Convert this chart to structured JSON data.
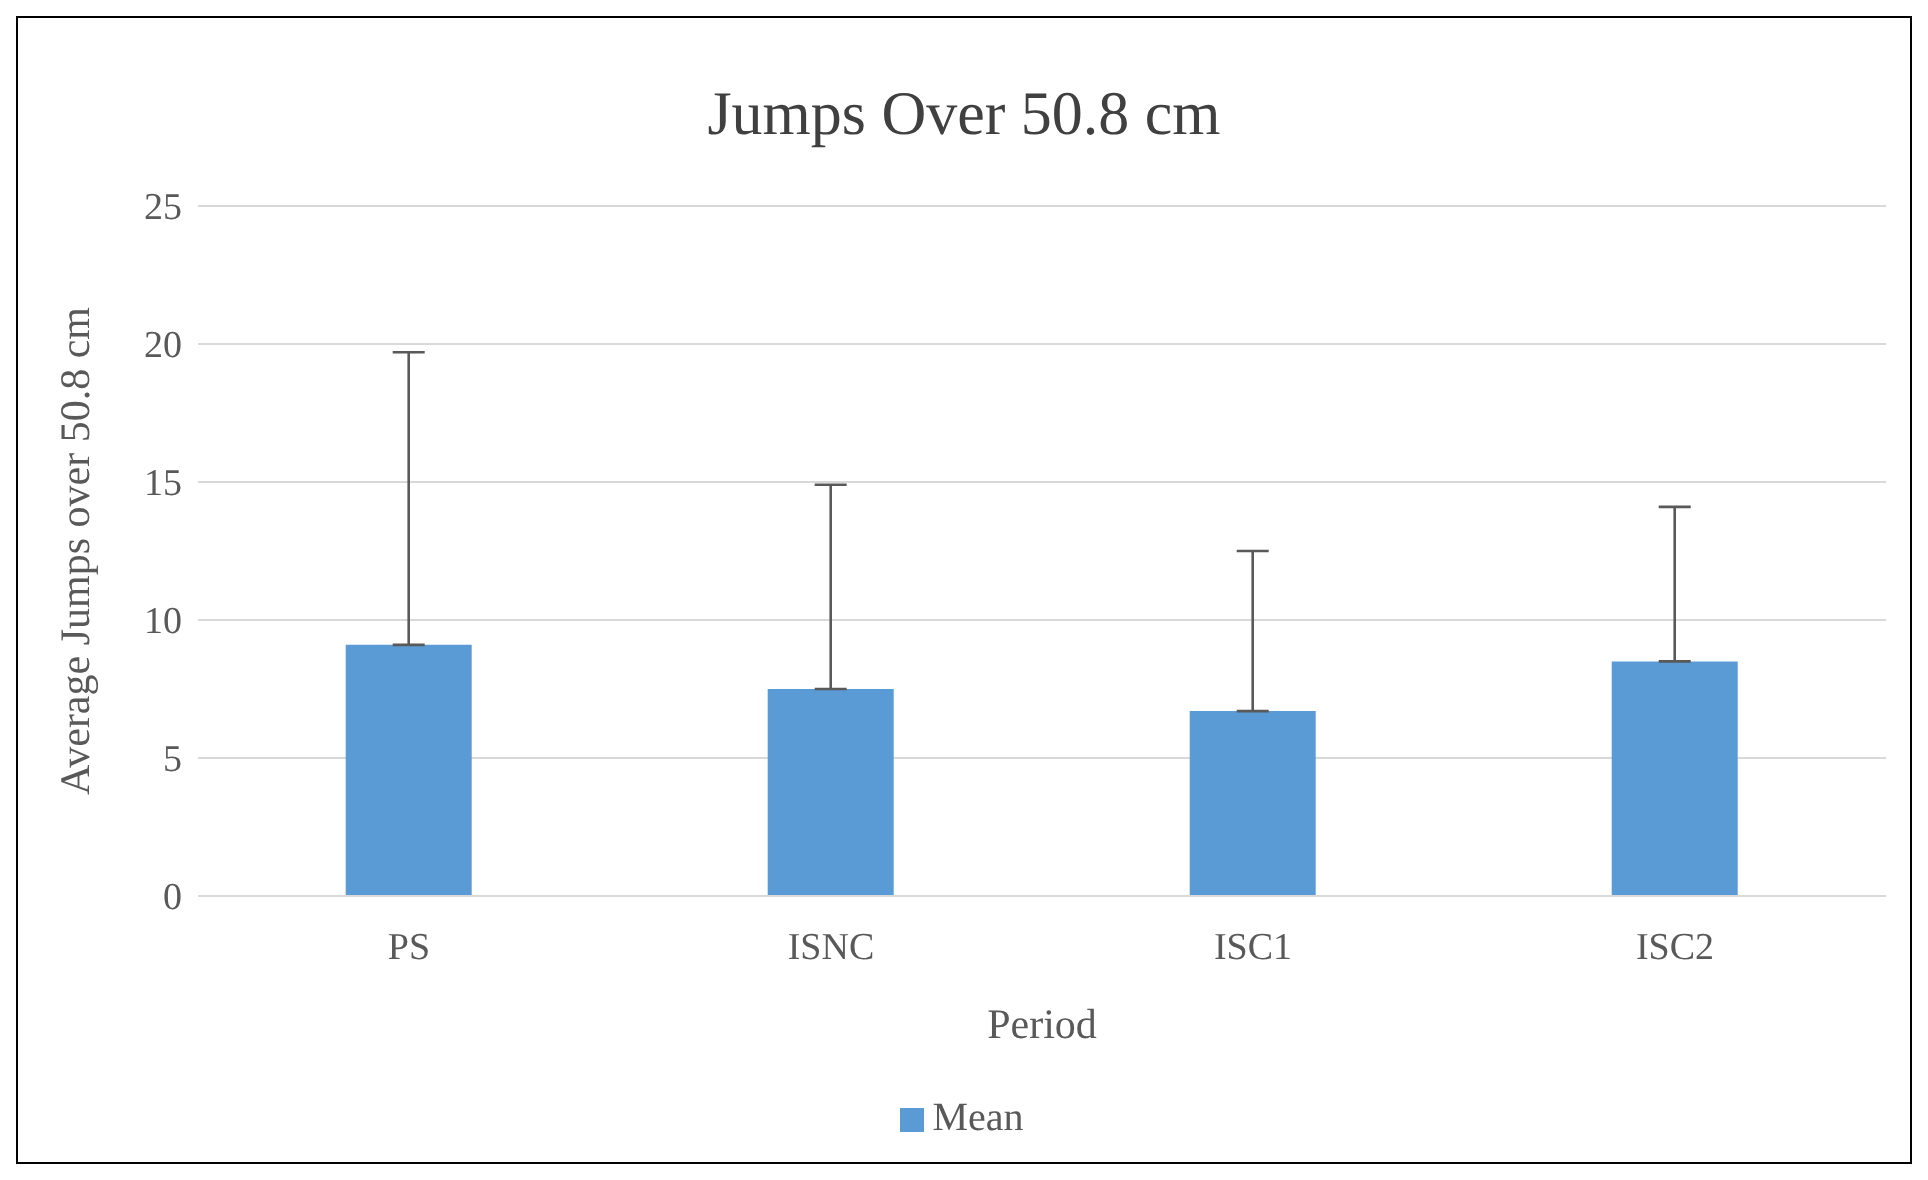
{
  "chart_data": {
    "type": "bar",
    "title": "Jumps Over 50.8 cm",
    "xlabel": "Period",
    "ylabel": "Average Jumps over 50.8 cm",
    "categories": [
      "PS",
      "ISNC",
      "ISC1",
      "ISC2"
    ],
    "series": [
      {
        "name": "Mean",
        "color": "#5b9bd5",
        "values": [
          9.1,
          7.5,
          6.7,
          8.5
        ],
        "errors": [
          [
            9.1,
            19.7
          ],
          [
            7.5,
            14.9
          ],
          [
            6.7,
            12.5
          ],
          [
            8.5,
            14.1
          ]
        ]
      }
    ],
    "ylim": [
      0,
      25
    ],
    "yticks": [
      0,
      5,
      10,
      15,
      20,
      25
    ],
    "grid": "y",
    "legend": "bottom"
  }
}
